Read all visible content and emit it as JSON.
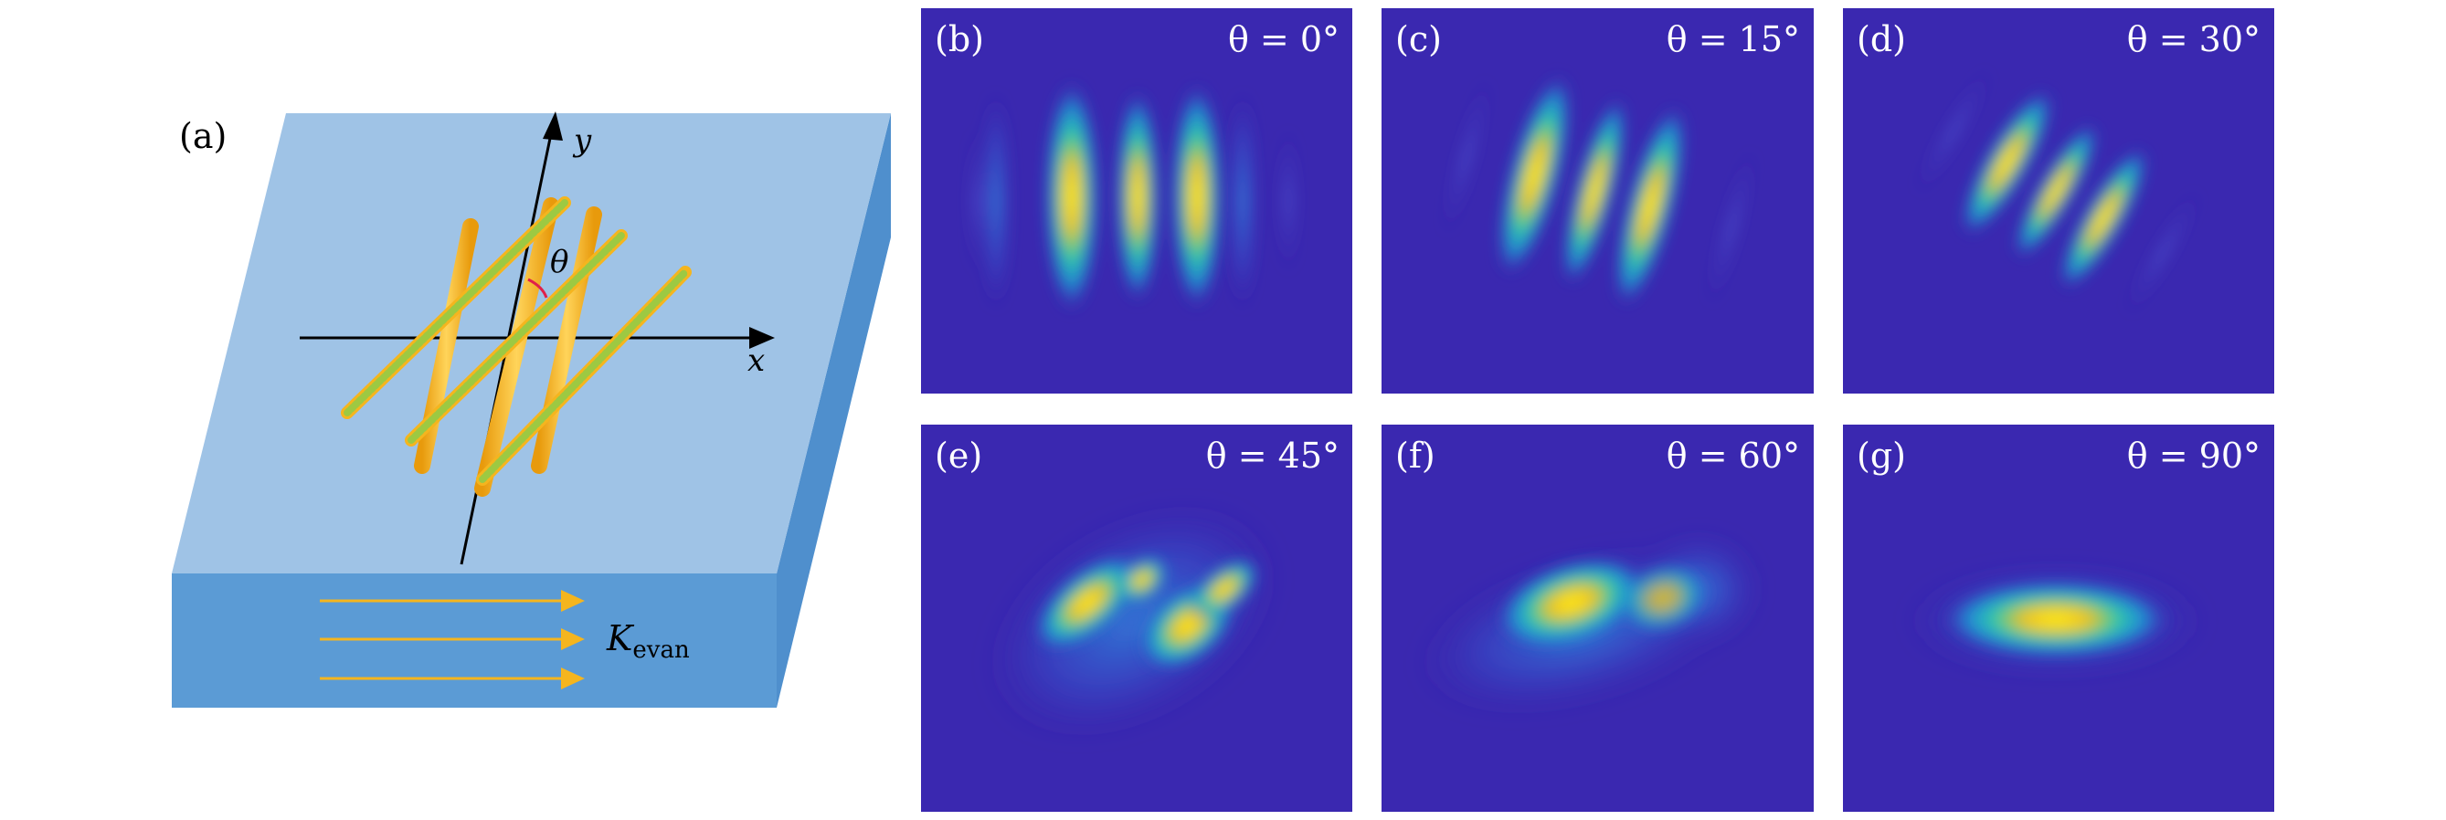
{
  "panel_a": {
    "label": "(a)",
    "axis_x": "x",
    "axis_y": "y",
    "angle": "θ",
    "k_main": "K",
    "k_sub": "evan",
    "colors": {
      "substrate_top": "#9fc3e6",
      "substrate_side": "#5b9bd5",
      "rod_gold": "#f5b51e",
      "rod_green": "#9dc942",
      "arrow": "#f5b51e",
      "angle_arc": "#e0204a"
    }
  },
  "colors": {
    "map_background": "#3a28b0",
    "map_mid": "#19b7c9",
    "map_high": "#ffe31a"
  },
  "panels": [
    {
      "label": "(b)",
      "theta": "θ = 0°"
    },
    {
      "label": "(c)",
      "theta": "θ = 15°"
    },
    {
      "label": "(d)",
      "theta": "θ = 30°"
    },
    {
      "label": "(e)",
      "theta": "θ = 45°"
    },
    {
      "label": "(f)",
      "theta": "θ = 60°"
    },
    {
      "label": "(g)",
      "theta": "θ = 90°"
    }
  ]
}
